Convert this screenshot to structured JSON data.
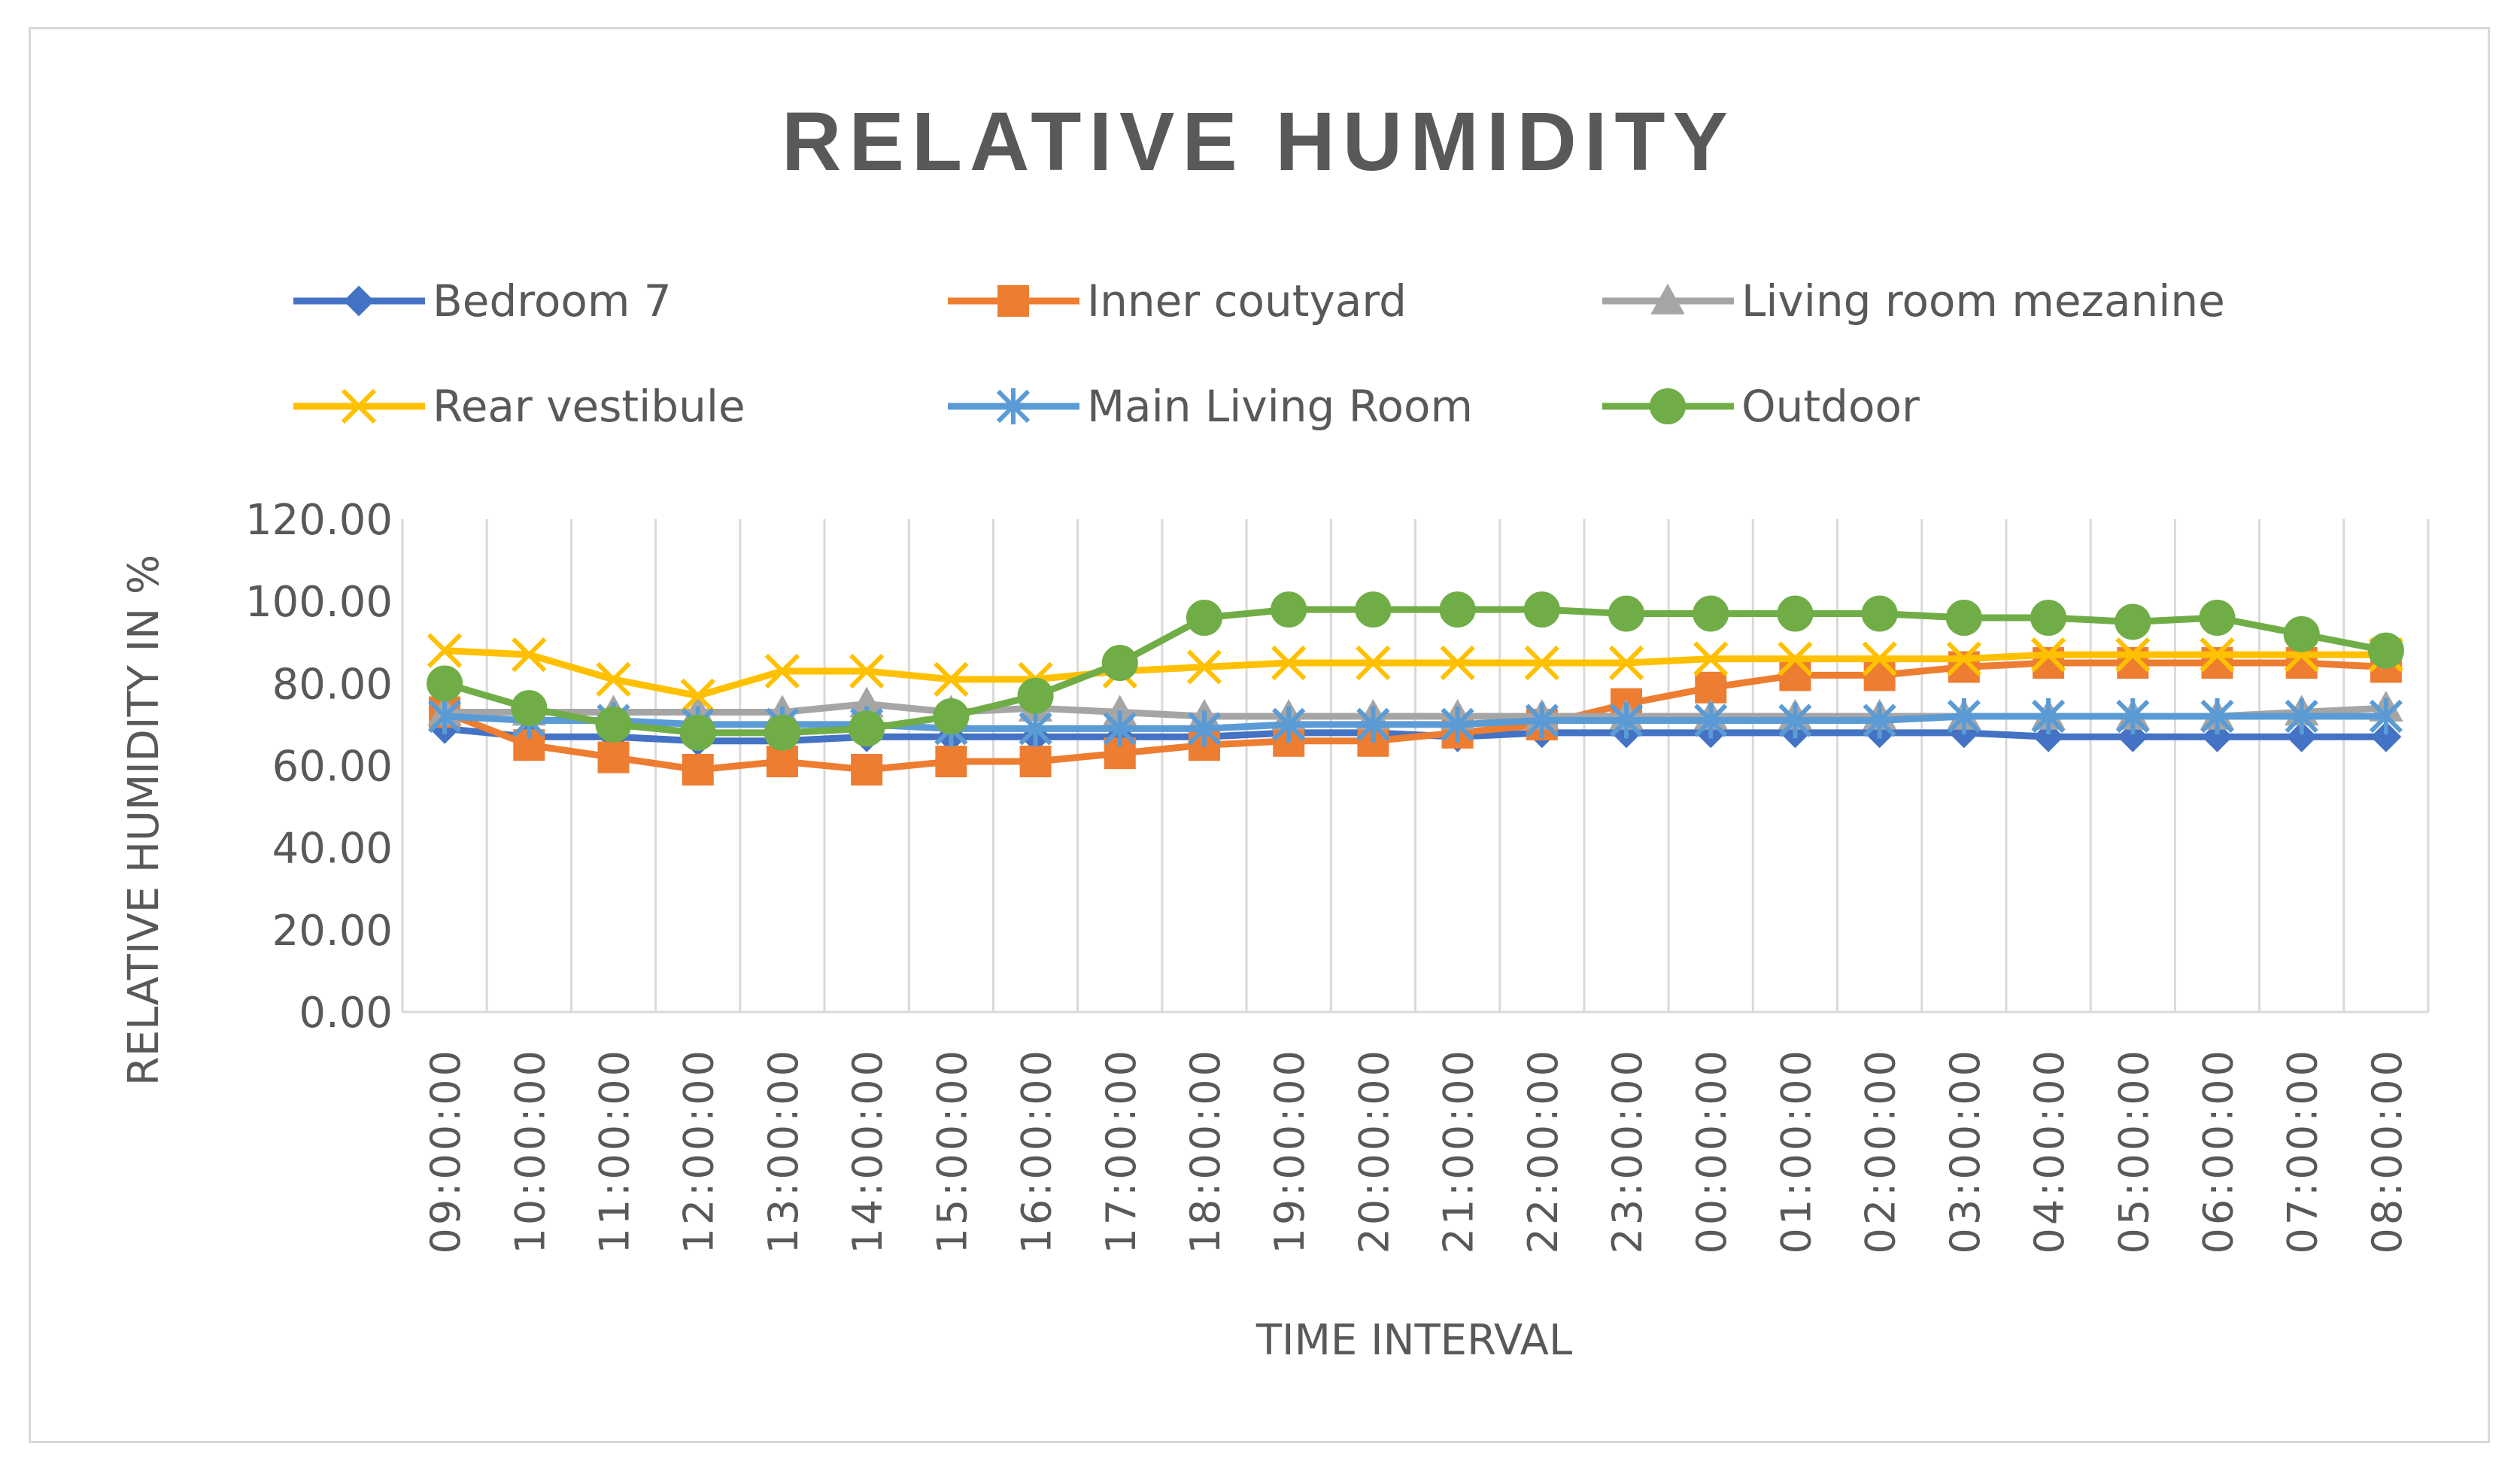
{
  "chart_data": {
    "type": "line",
    "title": "RELATIVE HUMIDITY",
    "xlabel": "TIME INTERVAL",
    "ylabel": "RELATIVE HUMIDITY IN %",
    "ylim": [
      0,
      120
    ],
    "yticks": [
      "0.00",
      "20.00",
      "40.00",
      "60.00",
      "80.00",
      "100.00",
      "120.00"
    ],
    "grid": "vertical",
    "legend_position": "top",
    "categories": [
      "09:00:00",
      "10:00:00",
      "11:00:00",
      "12:00:00",
      "13:00:00",
      "14:00:00",
      "15:00:00",
      "16:00:00",
      "17:00:00",
      "18:00:00",
      "19:00:00",
      "20:00:00",
      "21:00:00",
      "22:00:00",
      "23:00:00",
      "00:00:00",
      "01:00:00",
      "02:00:00",
      "03:00:00",
      "04:00:00",
      "05:00:00",
      "06:00:00",
      "07:00:00",
      "08:00:00"
    ],
    "series": [
      {
        "name": "Bedroom 7",
        "color": "#4472c4",
        "marker": "diamond",
        "values": [
          69,
          67,
          67,
          66,
          66,
          67,
          67,
          67,
          67,
          67,
          68,
          68,
          67,
          68,
          68,
          68,
          68,
          68,
          68,
          67,
          67,
          67,
          67,
          67
        ]
      },
      {
        "name": "Inner coutyard",
        "color": "#ed7d31",
        "marker": "square",
        "values": [
          73,
          65,
          62,
          59,
          61,
          59,
          61,
          61,
          63,
          65,
          66,
          66,
          68,
          70,
          75,
          79,
          82,
          82,
          84,
          85,
          85,
          85,
          85,
          84
        ]
      },
      {
        "name": "Living room mezanine",
        "color": "#a5a5a5",
        "marker": "triangle",
        "values": [
          73,
          73,
          73,
          73,
          73,
          75,
          73,
          74,
          73,
          72,
          72,
          72,
          72,
          72,
          72,
          72,
          72,
          72,
          72,
          72,
          72,
          72,
          73,
          74
        ]
      },
      {
        "name": "Rear vestibule",
        "color": "#ffc000",
        "marker": "x",
        "values": [
          88,
          87,
          81,
          77,
          83,
          83,
          81,
          81,
          83,
          84,
          85,
          85,
          85,
          85,
          85,
          86,
          86,
          86,
          86,
          87,
          87,
          87,
          87,
          87
        ]
      },
      {
        "name": "Main Living Room",
        "color": "#5b9bd5",
        "marker": "star",
        "values": [
          72,
          71,
          71,
          70,
          70,
          70,
          69,
          69,
          69,
          69,
          70,
          70,
          70,
          71,
          71,
          71,
          71,
          71,
          72,
          72,
          72,
          72,
          72,
          72
        ]
      },
      {
        "name": "Outdoor",
        "color": "#70ad47",
        "marker": "circle",
        "values": [
          80,
          74,
          70,
          68,
          68,
          69,
          72,
          77,
          85,
          96,
          98,
          98,
          98,
          98,
          97,
          97,
          97,
          97,
          96,
          96,
          95,
          96,
          92,
          88
        ]
      }
    ]
  }
}
